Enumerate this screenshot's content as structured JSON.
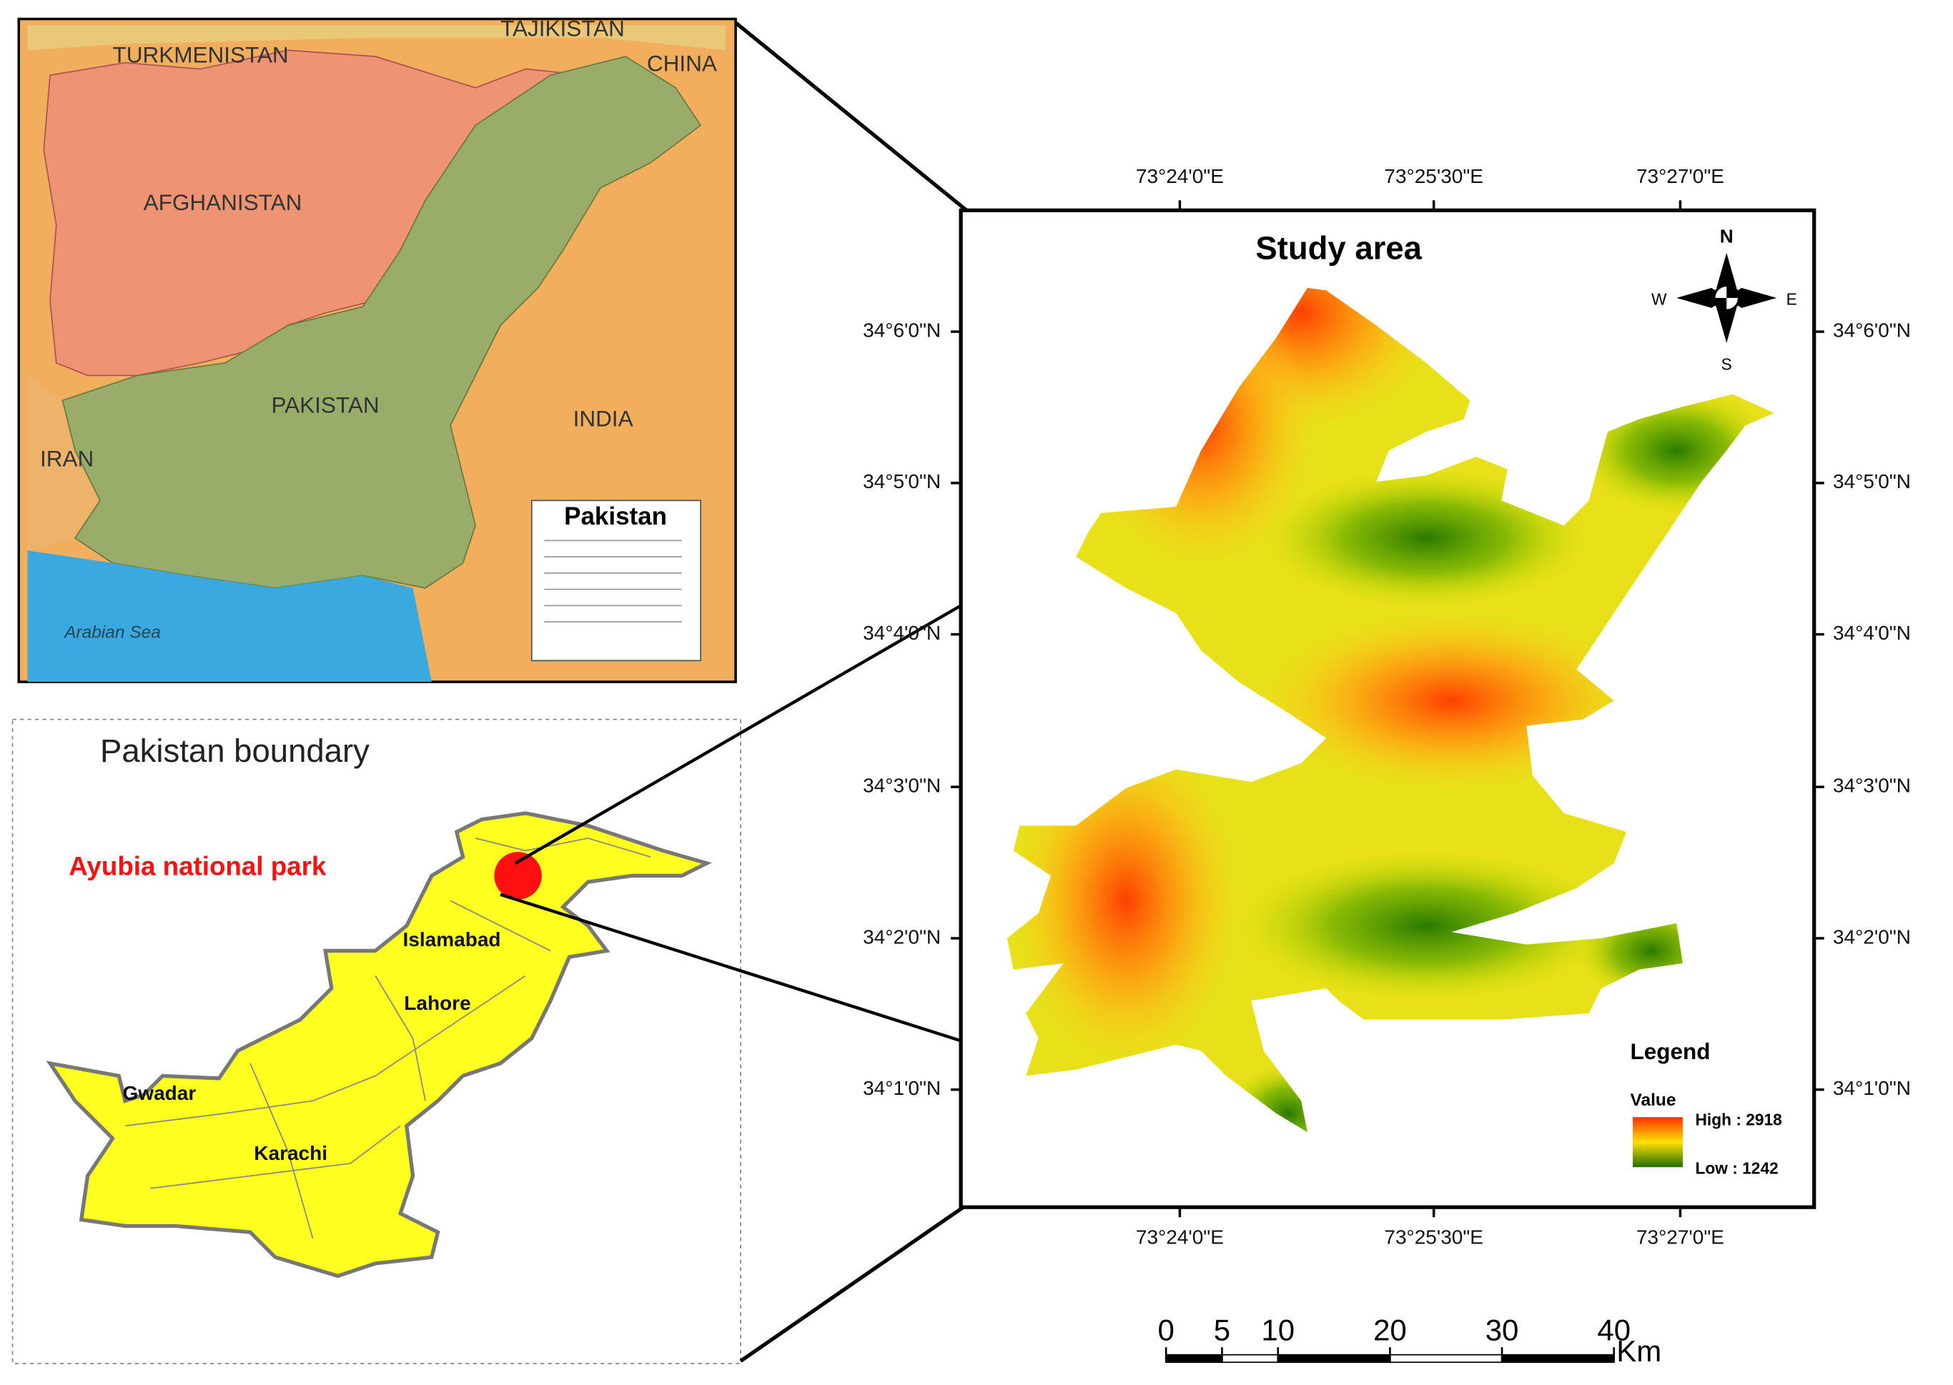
{
  "inset_map": {
    "labels": [
      "TURKMENISTAN",
      "TAJIKISTAN",
      "CHINA",
      "AFGHANISTAN",
      "PAKISTAN",
      "IRAN",
      "INDIA",
      "Arabian Sea"
    ],
    "legend_title": "Pakistan"
  },
  "boundary_map": {
    "title": "Pakistan boundary",
    "park": "Ayubia national park",
    "cities": [
      "Islamabad",
      "Lahore",
      "Gwadar",
      "Karachi"
    ]
  },
  "study_area": {
    "title": "Study area",
    "longitudes": [
      "73°24'0\"E",
      "73°25'30\"E",
      "73°27'0\"E"
    ],
    "latitudes": [
      "34°6'0\"N",
      "34°5'0\"N",
      "34°4'0\"N",
      "34°3'0\"N",
      "34°2'0\"N",
      "34°1'0\"N"
    ],
    "compass": {
      "north": "N",
      "south": "S",
      "east": "E",
      "west": "W"
    },
    "legend": {
      "title": "Legend",
      "subtitle": "Value",
      "high": "High : 2918",
      "low": "Low : 1242"
    }
  },
  "scale_bar": {
    "ticks": [
      0,
      5,
      10,
      20,
      30,
      40
    ],
    "unit": "Km"
  }
}
